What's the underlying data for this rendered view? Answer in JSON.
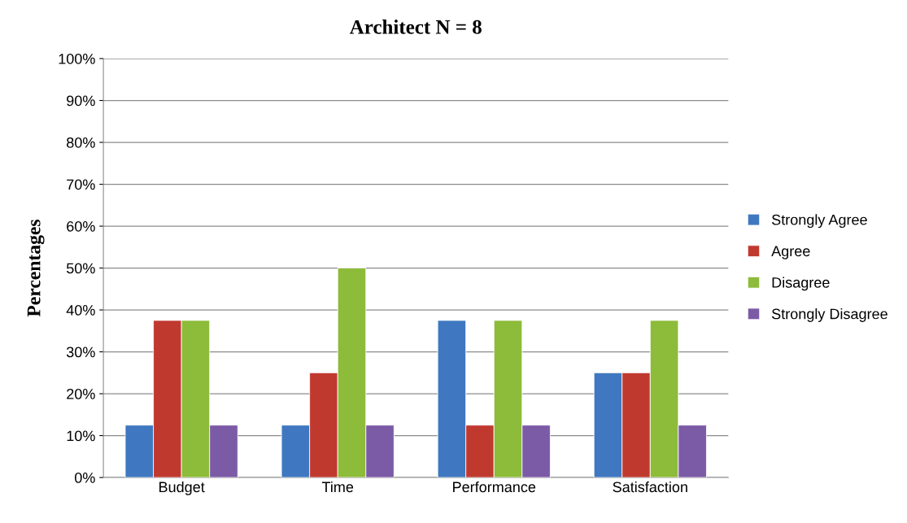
{
  "chart_data": {
    "type": "bar",
    "title": "Architect N = 8",
    "ylabel": "Percentages",
    "categories": [
      "Budget",
      "Time",
      "Performance",
      "Satisfaction"
    ],
    "series": [
      {
        "name": "Strongly Agree",
        "color": "#3f78c0",
        "values": [
          12.5,
          12.5,
          37.5,
          25
        ]
      },
      {
        "name": "Agree",
        "color": "#c0392f",
        "values": [
          37.5,
          25,
          12.5,
          25
        ]
      },
      {
        "name": "Disagree",
        "color": "#8dbb3a",
        "values": [
          37.5,
          50,
          37.5,
          37.5
        ]
      },
      {
        "name": "Strongly Disagree",
        "color": "#7b5aa6",
        "values": [
          12.5,
          12.5,
          12.5,
          12.5
        ]
      }
    ],
    "ylim": [
      0,
      100
    ],
    "yticks": [
      {
        "value": 0,
        "label": "0%"
      },
      {
        "value": 10,
        "label": "10%"
      },
      {
        "value": 20,
        "label": "20%"
      },
      {
        "value": 30,
        "label": "30%"
      },
      {
        "value": 40,
        "label": "40%"
      },
      {
        "value": 50,
        "label": "50%"
      },
      {
        "value": 60,
        "label": "60%"
      },
      {
        "value": 70,
        "label": "70%"
      },
      {
        "value": 80,
        "label": "80%"
      },
      {
        "value": 90,
        "label": "90%"
      },
      {
        "value": 100,
        "label": "100%"
      }
    ],
    "grid": "y",
    "legend": "right"
  }
}
